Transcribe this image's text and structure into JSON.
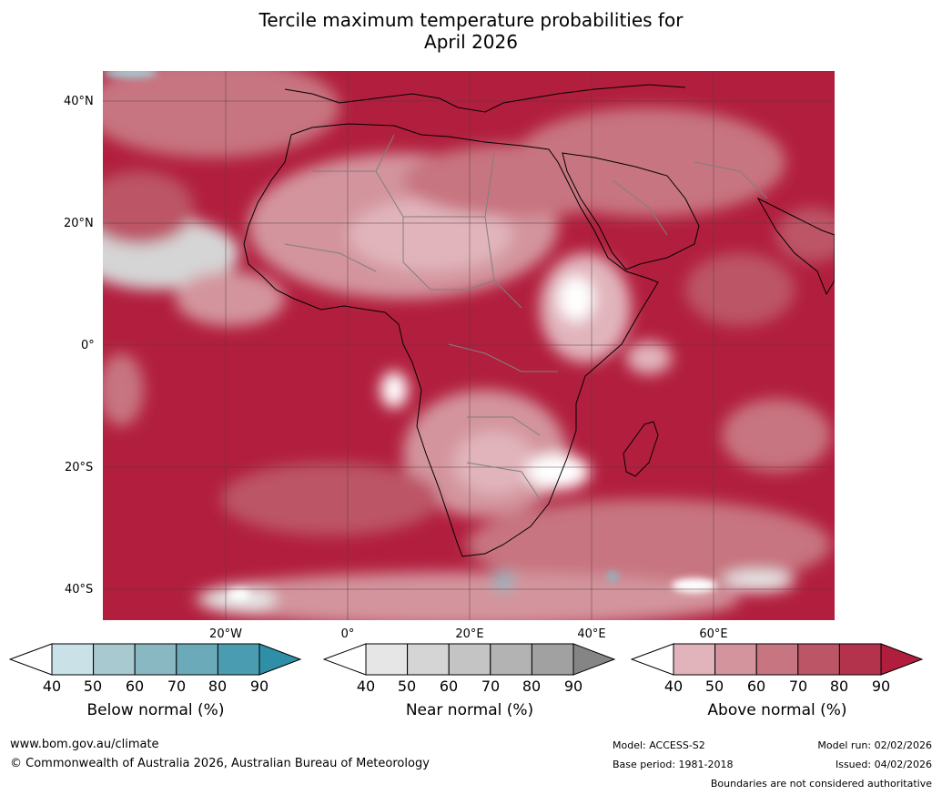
{
  "title": {
    "line1": "Tercile maximum temperature probabilities for",
    "line2": "April 2026"
  },
  "map": {
    "lat_labels": [
      "40°N",
      "20°N",
      "0°",
      "20°S",
      "40°S"
    ],
    "lon_labels": [
      "20°W",
      "0°",
      "20°E",
      "40°E",
      "60°E"
    ],
    "land_border_color": "#000000",
    "country_border_color": "#7f7f7f"
  },
  "colorbars": [
    {
      "label": "Below normal (%)",
      "ticks": [
        "40",
        "50",
        "60",
        "70",
        "80",
        "90"
      ],
      "colors": [
        "#ffffff",
        "#c9e1e7",
        "#a8c9d0",
        "#89b8c3",
        "#6aaab9",
        "#4a9db1",
        "#2e8fa6"
      ]
    },
    {
      "label": "Near normal (%)",
      "ticks": [
        "40",
        "50",
        "60",
        "70",
        "80",
        "90"
      ],
      "colors": [
        "#ffffff",
        "#e6e6e6",
        "#d5d5d5",
        "#c4c4c4",
        "#b3b3b3",
        "#a1a1a1",
        "#858585"
      ]
    },
    {
      "label": "Above normal (%)",
      "ticks": [
        "40",
        "50",
        "60",
        "70",
        "80",
        "90"
      ],
      "colors": [
        "#ffffff",
        "#e1b4bb",
        "#d3949d",
        "#c77580",
        "#bc5566",
        "#b3334d",
        "#b11e3d"
      ]
    }
  ],
  "footer": {
    "website": "www.bom.gov.au/climate",
    "copyright": "© Commonwealth of Australia 2026, Australian Bureau of Meteorology",
    "model": "Model: ACCESS-S2",
    "base_period": "Base period: 1981-2018",
    "model_run": "Model run: 02/02/2026",
    "issued": "Issued: 04/02/2026",
    "disclaimer": "Boundaries are not considered authoritative"
  }
}
